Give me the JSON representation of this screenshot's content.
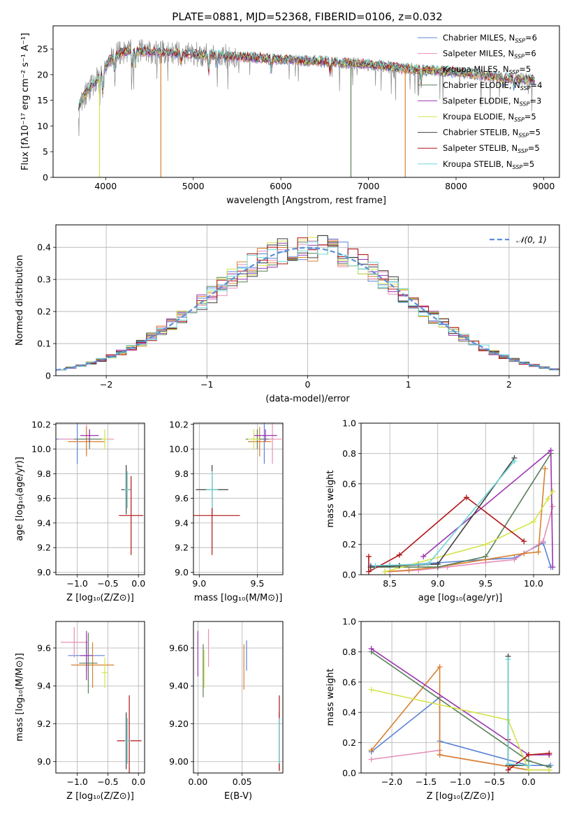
{
  "figure": {
    "title": "PLATE=0881, MJD=52368, FIBERID=0106, z=0.032"
  },
  "legend_entries": [
    {
      "label": "Chabrier MILES, N",
      "sub": "SSP",
      "suffix": "=6",
      "color": "#5b84d6"
    },
    {
      "label": "Salpeter MILES, N",
      "sub": "SSP",
      "suffix": "=6",
      "color": "#e58fb9"
    },
    {
      "label": "Kroupa MILES, N",
      "sub": "SSP",
      "suffix": "=5",
      "color": "#d98030"
    },
    {
      "label": "Chabrier ELODIE, N",
      "sub": "SSP",
      "suffix": "=4",
      "color": "#5a7f5a"
    },
    {
      "label": "Salpeter ELODIE, N",
      "sub": "SSP",
      "suffix": "=3",
      "color": "#9a34b0"
    },
    {
      "label": "Kroupa ELODIE, N",
      "sub": "SSP",
      "suffix": "=5",
      "color": "#d4e34a"
    },
    {
      "label": "Chabrier STELIB, N",
      "sub": "SSP",
      "suffix": "=5",
      "color": "#3e3e3e"
    },
    {
      "label": "Salpeter STELIB, N",
      "sub": "SSP",
      "suffix": "=5",
      "color": "#b01414"
    },
    {
      "label": "Kroupa STELIB, N",
      "sub": "SSP",
      "suffix": "=5",
      "color": "#6fd6d6"
    }
  ],
  "chart_data": [
    {
      "id": "spectrum",
      "type": "line",
      "xlabel": "wavelength [Angstrom, rest frame]",
      "ylabel": "Flux [fλ10⁻¹⁷ erg cm⁻² s⁻¹ A⁻¹]",
      "xlim": [
        3400,
        9180
      ],
      "ylim": [
        0,
        29.5
      ],
      "xticks": [
        4000,
        5000,
        6000,
        7000,
        8000,
        9000
      ],
      "yticks": [
        0,
        5,
        10,
        15,
        20,
        25
      ],
      "legend": "top-right",
      "continuum_knots": [
        [
          3690,
          14
        ],
        [
          3800,
          17
        ],
        [
          3950,
          20
        ],
        [
          4050,
          23
        ],
        [
          4200,
          24.5
        ],
        [
          4500,
          24.5
        ],
        [
          5000,
          24
        ],
        [
          5500,
          23.5
        ],
        [
          6000,
          23
        ],
        [
          6500,
          22.5
        ],
        [
          7000,
          22
        ],
        [
          7500,
          21
        ],
        [
          8000,
          20.5
        ],
        [
          8500,
          19.5
        ],
        [
          8900,
          19
        ]
      ],
      "absorption_lines": [
        [
          3934,
          4
        ],
        [
          3969,
          5
        ],
        [
          4101,
          3
        ],
        [
          4300,
          3
        ],
        [
          4340,
          3
        ],
        [
          4861,
          3
        ],
        [
          5175,
          4
        ],
        [
          5270,
          2
        ],
        [
          5890,
          3
        ],
        [
          6563,
          3
        ],
        [
          7600,
          3
        ],
        [
          8542,
          2
        ],
        [
          8662,
          2
        ]
      ],
      "model_spikes": [
        [
          3930,
          "#d4e34a"
        ],
        [
          4630,
          "#d98030"
        ],
        [
          6800,
          "#5a7f5a"
        ],
        [
          7420,
          "#d98030"
        ]
      ]
    },
    {
      "id": "residuals",
      "type": "histogram",
      "xlabel": "(data-model)/error",
      "ylabel": "Normed distribution",
      "xlim": [
        -2.5,
        2.5
      ],
      "ylim": [
        0,
        0.47
      ],
      "xticks": [
        -2,
        -1,
        0,
        1,
        2
      ],
      "yticks": [
        0,
        0.1,
        0.2,
        0.3,
        0.4
      ],
      "grid": true,
      "legend": "top-right",
      "reference_label": "𝒩(0, 1)",
      "reference_color": "#5b8fd9",
      "bin_width": 0.1
    },
    {
      "id": "age-vs-Z",
      "type": "errorbar",
      "xlabel": "Z [log₁₀(Z/Z⊙)]",
      "ylabel": "age  [log₁₀(age/yr)]",
      "xlim": [
        -1.35,
        0.1
      ],
      "ylim": [
        8.98,
        10.21
      ],
      "xticks": [
        -1.0,
        -0.5,
        0.0
      ],
      "yticks": [
        9.0,
        9.2,
        9.4,
        9.6,
        9.8,
        10.0,
        10.2
      ],
      "points": [
        {
          "x": -1.0,
          "y": 10.08,
          "xerr": 0.35,
          "yerr": 0.2,
          "color": "#5b84d6"
        },
        {
          "x": -0.85,
          "y": 10.08,
          "xerr": 0.45,
          "yerr": 0.12,
          "color": "#e58fb9"
        },
        {
          "x": -0.85,
          "y": 10.06,
          "xerr": 0.3,
          "yerr": 0.12,
          "color": "#d98030"
        },
        {
          "x": -0.8,
          "y": 10.08,
          "xerr": 0.25,
          "yerr": 0.08,
          "color": "#5a7f5a"
        },
        {
          "x": -0.8,
          "y": 10.11,
          "xerr": 0.15,
          "yerr": 0.05,
          "color": "#9a34b0"
        },
        {
          "x": -0.55,
          "y": 10.08,
          "xerr": 0.05,
          "yerr": 0.08,
          "color": "#d4e34a"
        },
        {
          "x": -0.2,
          "y": 9.67,
          "xerr": 0.08,
          "yerr": 0.2,
          "color": "#3e3e3e"
        },
        {
          "x": -0.12,
          "y": 9.46,
          "xerr": 0.2,
          "yerr": 0.32,
          "color": "#b01414"
        },
        {
          "x": -0.18,
          "y": 9.67,
          "xerr": 0.05,
          "yerr": 0.15,
          "color": "#6fd6d6"
        }
      ]
    },
    {
      "id": "age-vs-mass",
      "type": "errorbar",
      "xlabel": "mass [log₁₀(M/M⊙)]",
      "ylabel": "",
      "xlim": [
        8.95,
        9.72
      ],
      "ylim": [
        8.98,
        10.21
      ],
      "xticks": [
        9.0,
        9.5
      ],
      "yticks": [
        9.0,
        9.2,
        9.4,
        9.6,
        9.8,
        10.0,
        10.2
      ],
      "points": [
        {
          "x": 9.56,
          "y": 10.08,
          "xerr": 0.08,
          "yerr": 0.2,
          "color": "#5b84d6"
        },
        {
          "x": 9.63,
          "y": 10.08,
          "xerr": 0.08,
          "yerr": 0.2,
          "color": "#e58fb9"
        },
        {
          "x": 9.52,
          "y": 10.06,
          "xerr": 0.1,
          "yerr": 0.12,
          "color": "#d98030"
        },
        {
          "x": 9.5,
          "y": 10.08,
          "xerr": 0.1,
          "yerr": 0.08,
          "color": "#5a7f5a"
        },
        {
          "x": 9.57,
          "y": 10.11,
          "xerr": 0.1,
          "yerr": 0.05,
          "color": "#9a34b0"
        },
        {
          "x": 9.47,
          "y": 10.08,
          "xerr": 0.05,
          "yerr": 0.08,
          "color": "#d4e34a"
        },
        {
          "x": 9.11,
          "y": 9.67,
          "xerr": 0.14,
          "yerr": 0.2,
          "color": "#3e3e3e"
        },
        {
          "x": 9.11,
          "y": 9.46,
          "xerr": 0.24,
          "yerr": 0.32,
          "color": "#b01414"
        },
        {
          "x": 9.11,
          "y": 9.67,
          "xerr": 0.05,
          "yerr": 0.15,
          "color": "#6fd6d6"
        }
      ]
    },
    {
      "id": "weight-vs-age",
      "type": "line",
      "xlabel": "age  [log₁₀(age/yr)]",
      "ylabel": "mass weight",
      "xlim": [
        8.2,
        10.27
      ],
      "ylim": [
        0,
        1.0
      ],
      "xticks": [
        8.5,
        9.0,
        9.5,
        10.0
      ],
      "yticks": [
        0.0,
        0.2,
        0.4,
        0.6,
        0.8,
        1.0
      ],
      "grid": true,
      "series": [
        {
          "color": "#5b84d6",
          "x": [
            8.3,
            8.5,
            8.8,
            9.5,
            9.8,
            10.1,
            10.18
          ],
          "y": [
            0.06,
            0.06,
            0.07,
            0.1,
            0.11,
            0.21,
            0.05
          ]
        },
        {
          "color": "#e58fb9",
          "x": [
            8.5,
            8.8,
            9.1,
            9.5,
            9.8,
            10.1,
            10.2
          ],
          "y": [
            0.02,
            0.03,
            0.05,
            0.08,
            0.1,
            0.22,
            0.45
          ]
        },
        {
          "color": "#d98030",
          "x": [
            8.45,
            8.7,
            9.0,
            9.5,
            9.9,
            10.05,
            10.12
          ],
          "y": [
            0.02,
            0.03,
            0.05,
            0.1,
            0.14,
            0.15,
            0.7
          ]
        },
        {
          "color": "#5a7f5a",
          "x": [
            8.3,
            9.0,
            9.5,
            10.18
          ],
          "y": [
            0.05,
            0.05,
            0.12,
            0.8
          ]
        },
        {
          "color": "#9a34b0",
          "x": [
            8.85,
            10.18,
            10.2
          ],
          "y": [
            0.12,
            0.82,
            0.05
          ]
        },
        {
          "color": "#d4e34a",
          "x": [
            8.45,
            9.5,
            10.0,
            10.15,
            10.2
          ],
          "y": [
            0.02,
            0.2,
            0.35,
            0.5,
            0.55
          ]
        },
        {
          "color": "#3e3e3e",
          "x": [
            8.3,
            8.6,
            9.0,
            9.8
          ],
          "y": [
            0.05,
            0.06,
            0.07,
            0.77
          ]
        },
        {
          "color": "#b01414",
          "x": [
            8.28,
            8.28,
            8.6,
            9.3,
            9.9
          ],
          "y": [
            0.12,
            0.02,
            0.13,
            0.51,
            0.22
          ]
        },
        {
          "color": "#6fd6d6",
          "x": [
            8.35,
            8.9,
            9.8
          ],
          "y": [
            0.06,
            0.07,
            0.75
          ]
        }
      ]
    },
    {
      "id": "mass-vs-Z",
      "type": "errorbar",
      "xlabel": "Z [log₁₀(Z/Z⊙)]",
      "ylabel": "mass [log₁₀(M/M⊙)]",
      "xlim": [
        -1.35,
        0.1
      ],
      "ylim": [
        8.94,
        9.74
      ],
      "xticks": [
        -1.0,
        -0.5,
        0.0
      ],
      "yticks": [
        9.0,
        9.2,
        9.4,
        9.6
      ],
      "points": [
        {
          "x": -0.85,
          "y": 9.56,
          "xerr": 0.3,
          "yerr": 0.08,
          "color": "#5b84d6"
        },
        {
          "x": -1.05,
          "y": 9.63,
          "xerr": 0.22,
          "yerr": 0.08,
          "color": "#e58fb9"
        },
        {
          "x": -0.75,
          "y": 9.51,
          "xerr": 0.35,
          "yerr": 0.12,
          "color": "#d98030"
        },
        {
          "x": -0.82,
          "y": 9.52,
          "xerr": 0.15,
          "yerr": 0.16,
          "color": "#5a7f5a"
        },
        {
          "x": -0.85,
          "y": 9.56,
          "xerr": 0.1,
          "yerr": 0.13,
          "color": "#9a34b0"
        },
        {
          "x": -0.55,
          "y": 9.47,
          "xerr": 0.05,
          "yerr": 0.08,
          "color": "#d4e34a"
        },
        {
          "x": -0.2,
          "y": 9.11,
          "xerr": 0.05,
          "yerr": 0.15,
          "color": "#3e3e3e"
        },
        {
          "x": -0.15,
          "y": 9.11,
          "xerr": 0.2,
          "yerr": 0.24,
          "color": "#b01414"
        },
        {
          "x": -0.18,
          "y": 9.11,
          "xerr": 0.05,
          "yerr": 0.12,
          "color": "#6fd6d6"
        }
      ]
    },
    {
      "id": "mass-vs-EBV",
      "type": "errorbar",
      "xlabel": "E(B-V)",
      "ylabel": "",
      "xlim": [
        -0.005,
        0.096
      ],
      "ylim": [
        8.94,
        9.74
      ],
      "xticks": [
        0.0,
        0.05
      ],
      "yticks": [
        9.0,
        9.2,
        9.4,
        9.6
      ],
      "points": [
        {
          "x": 0.055,
          "y": 9.56,
          "yerr": 0.08,
          "color": "#5b84d6"
        },
        {
          "x": 0.012,
          "y": 9.6,
          "yerr": 0.1,
          "color": "#e58fb9"
        },
        {
          "x": 0.052,
          "y": 9.5,
          "yerr": 0.12,
          "color": "#d98030"
        },
        {
          "x": 0.006,
          "y": 9.48,
          "yerr": 0.14,
          "color": "#5a7f5a"
        },
        {
          "x": 0.0,
          "y": 9.57,
          "yerr": 0.12,
          "color": "#9a34b0"
        },
        {
          "x": 0.007,
          "y": 9.49,
          "yerr": 0.1,
          "color": "#d4e34a"
        },
        {
          "x": 0.092,
          "y": 9.11,
          "yerr": 0.15,
          "color": "#3e3e3e"
        },
        {
          "x": 0.092,
          "y": 9.15,
          "yerr": 0.2,
          "color": "#b01414"
        },
        {
          "x": 0.092,
          "y": 9.11,
          "yerr": 0.12,
          "color": "#6fd6d6"
        }
      ]
    },
    {
      "id": "weight-vs-Z",
      "type": "line",
      "xlabel": "Z [log₁₀(Z/Z⊙)]",
      "ylabel": "mass weight",
      "xlim": [
        -2.45,
        0.45
      ],
      "ylim": [
        0,
        1.0
      ],
      "xticks": [
        -2.0,
        -1.5,
        -1.0,
        -0.5,
        0.0
      ],
      "yticks": [
        0.0,
        0.2,
        0.4,
        0.6,
        0.8,
        1.0
      ],
      "grid": true,
      "series": [
        {
          "color": "#5b84d6",
          "x": [
            -2.3,
            -1.3,
            -1.3,
            0.0,
            0.32
          ],
          "y": [
            0.14,
            0.5,
            0.21,
            0.05,
            0.05
          ]
        },
        {
          "color": "#e58fb9",
          "x": [
            -2.3,
            -1.3,
            -1.3,
            0.0,
            0.3
          ],
          "y": [
            0.09,
            0.15,
            0.12,
            0.02,
            0.02
          ]
        },
        {
          "color": "#d98030",
          "x": [
            -2.3,
            -1.3,
            -1.3,
            0.0,
            0.3
          ],
          "y": [
            0.15,
            0.7,
            0.12,
            0.02,
            0.02
          ]
        },
        {
          "color": "#5a7f5a",
          "x": [
            -2.3,
            0.0,
            0.3
          ],
          "y": [
            0.8,
            0.08,
            0.04
          ]
        },
        {
          "color": "#9a34b0",
          "x": [
            -2.3,
            0.0,
            0.3
          ],
          "y": [
            0.82,
            0.12,
            0.12
          ]
        },
        {
          "color": "#d4e34a",
          "x": [
            -2.3,
            -0.3,
            0.0,
            0.3
          ],
          "y": [
            0.55,
            0.35,
            0.02,
            0.02
          ]
        },
        {
          "color": "#3e3e3e",
          "x": [
            -0.3,
            -0.3,
            0.0
          ],
          "y": [
            0.77,
            0.05,
            0.05
          ]
        },
        {
          "color": "#b01414",
          "x": [
            -0.3,
            -0.3,
            0.0,
            0.3
          ],
          "y": [
            0.22,
            0.02,
            0.12,
            0.13
          ]
        },
        {
          "color": "#6fd6d6",
          "x": [
            -0.3,
            -0.3,
            0.0
          ],
          "y": [
            0.75,
            0.06,
            0.05
          ]
        }
      ]
    }
  ]
}
